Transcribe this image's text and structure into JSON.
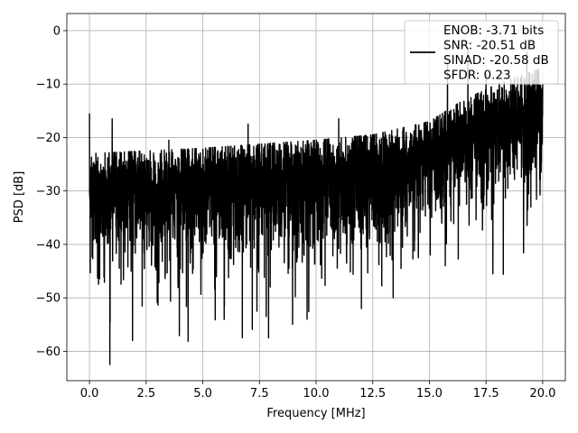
{
  "chart_data": {
    "type": "line",
    "xlabel": "Frequency [MHz]",
    "ylabel": "PSD [dB]",
    "xlim": [
      -1.0,
      21.0
    ],
    "ylim": [
      -65.5,
      3.2
    ],
    "x_ticks": [
      0.0,
      2.5,
      5.0,
      7.5,
      10.0,
      12.5,
      15.0,
      17.5,
      20.0
    ],
    "x_tick_labels": [
      "0.0",
      "2.5",
      "5.0",
      "7.5",
      "10.0",
      "12.5",
      "15.0",
      "17.5",
      "20.0"
    ],
    "y_ticks": [
      0,
      -10,
      -20,
      -30,
      -40,
      -50,
      -60
    ],
    "y_tick_labels": [
      "0",
      "−10",
      "−20",
      "−30",
      "−40",
      "−50",
      "−60"
    ],
    "grid": true,
    "legend_position": "top-right",
    "series": [
      {
        "name": "ENOB: -3.71 bits\nSNR: -20.51 dB\nSINAD: -20.58 dB\nSFDR: 0.23",
        "color": "#000000",
        "x_range": [
          0.0,
          20.0
        ],
        "points": 4096,
        "mean_trend": [
          [
            0,
            -31
          ],
          [
            5,
            -30
          ],
          [
            10,
            -28.5
          ],
          [
            12.5,
            -27.5
          ],
          [
            15,
            -25
          ],
          [
            16.5,
            -21
          ],
          [
            18,
            -18
          ],
          [
            20,
            -15
          ]
        ],
        "peaks": [
          [
            0.0,
            -15.5
          ],
          [
            1.0,
            -16.5
          ],
          [
            3.5,
            -20.5
          ],
          [
            7.0,
            -17.5
          ],
          [
            11.0,
            -16.5
          ],
          [
            15.8,
            -6
          ],
          [
            16.7,
            -3.3
          ],
          [
            17.5,
            -8
          ],
          [
            19.3,
            -4
          ],
          [
            20.0,
            -14
          ]
        ],
        "troughs": [
          [
            0.9,
            -62.5
          ],
          [
            1.9,
            -58
          ],
          [
            7.9,
            -57.5
          ],
          [
            7.8,
            -53.5
          ],
          [
            9.6,
            -54
          ],
          [
            12.0,
            -52
          ],
          [
            13.4,
            -50
          ],
          [
            15.7,
            -44
          ],
          [
            17.8,
            -45.5
          ]
        ]
      }
    ],
    "legend_entries": [
      "ENOB: -3.71 bits",
      "SNR: -20.51 dB",
      "SINAD: -20.58 dB",
      "SFDR: 0.23"
    ]
  }
}
